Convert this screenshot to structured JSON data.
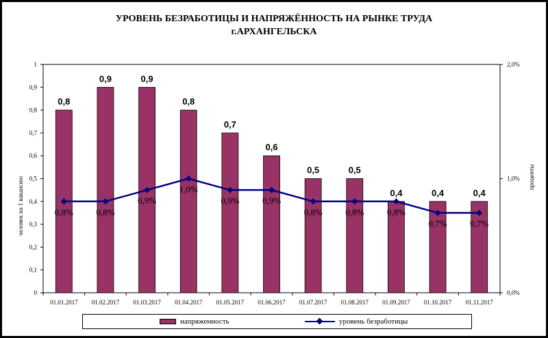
{
  "title_line1": "УРОВЕНЬ БЕЗРАБОТИЦЫ И НАПРЯЖЁННОСТЬ НА РЫНКЕ ТРУДА",
  "title_line2": "г.АРХАНГЕЛЬСКА",
  "chart_data": {
    "type": "bar",
    "categories": [
      "01.01.2017",
      "01.02.2017",
      "01.03.2017",
      "01.04.2017",
      "01.05.2017",
      "01.06.2017",
      "01.07.2017",
      "01.08.2017",
      "01.09.2017",
      "01.10.2017",
      "01.11.2017"
    ],
    "series": [
      {
        "name": "напряженность",
        "type": "bar",
        "axis": "left",
        "color": "#993366",
        "values": [
          0.8,
          0.9,
          0.9,
          0.8,
          0.7,
          0.6,
          0.5,
          0.5,
          0.4,
          0.4,
          0.4
        ],
        "labels": [
          "0,8",
          "0,9",
          "0,9",
          "0,8",
          "0,7",
          "0,6",
          "0,5",
          "0,5",
          "0,4",
          "0,4",
          "0,4"
        ]
      },
      {
        "name": "уровень безработицы",
        "type": "line",
        "axis": "right",
        "color": "#000080",
        "values": [
          0.8,
          0.8,
          0.9,
          1.0,
          0.9,
          0.9,
          0.8,
          0.8,
          0.8,
          0.7,
          0.7
        ],
        "labels": [
          "0,8%",
          "0,8%",
          "0,9%",
          "1,0%",
          "0,9%",
          "0,9%",
          "0,8%",
          "0,8%",
          "0,8%",
          "0,7%",
          "0,7%"
        ]
      }
    ],
    "ylabel_left": "человек на 1 вакансию",
    "ylabel_right": "проценты",
    "ylim_left": [
      0,
      1
    ],
    "ylim_right": [
      0,
      2
    ],
    "yticks_left": [
      "0",
      "0,1",
      "0,2",
      "0,3",
      "0,4",
      "0,5",
      "0,6",
      "0,7",
      "0,8",
      "0,9",
      "1"
    ],
    "yticks_right": [
      "0,0%",
      "1,0%",
      "2,0%"
    ],
    "grid": false,
    "legend_position": "bottom"
  }
}
